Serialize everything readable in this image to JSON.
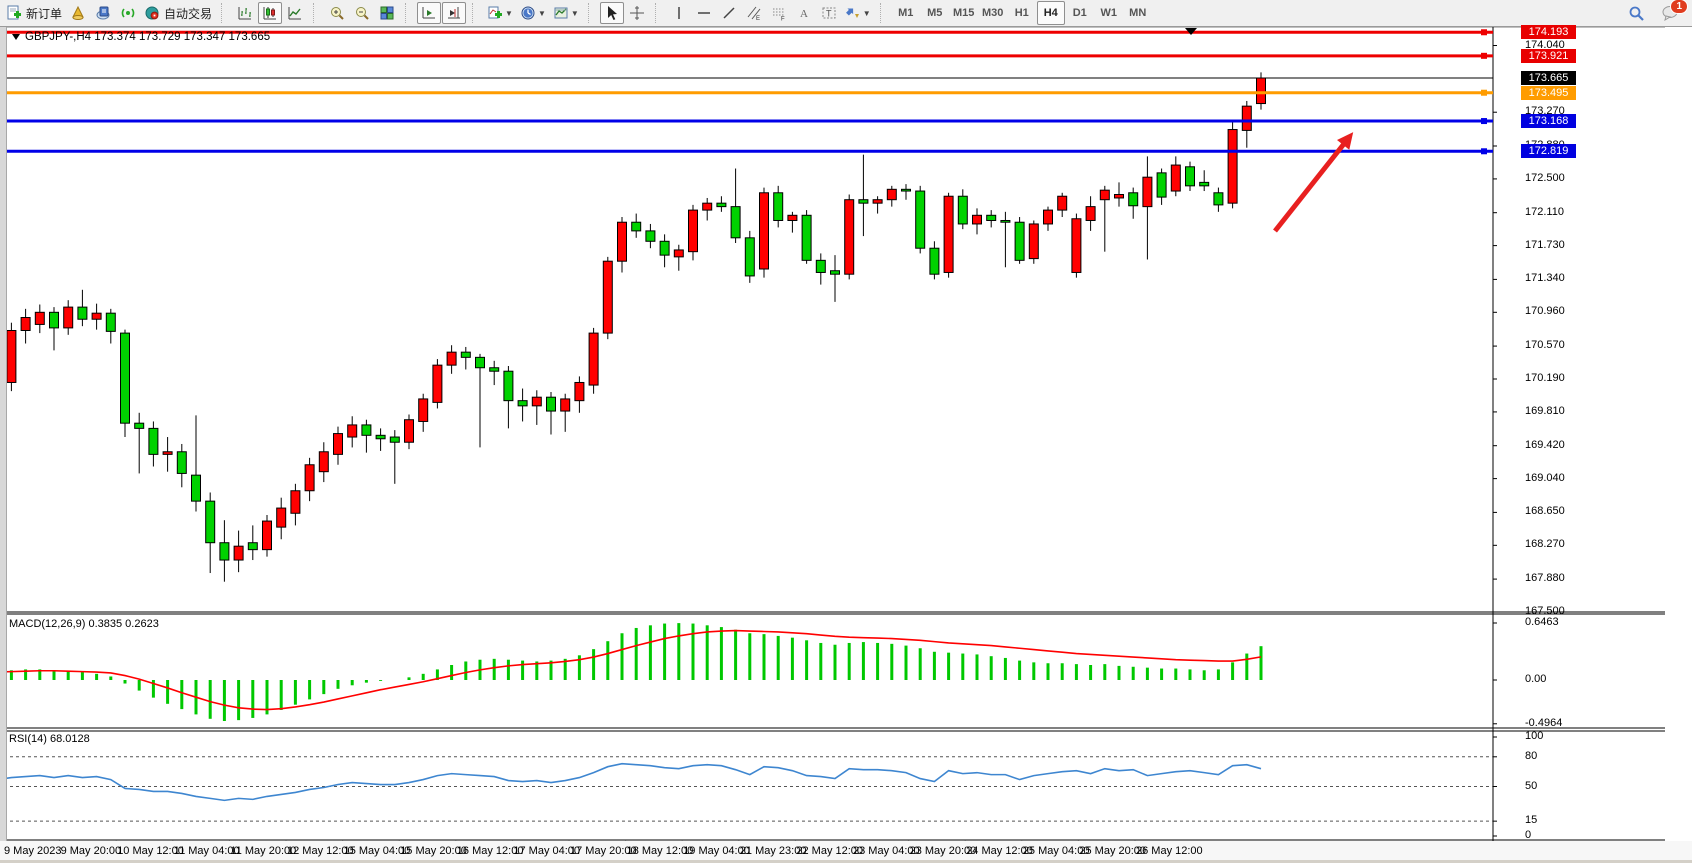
{
  "toolbar": {
    "new_order_label": "新订单",
    "auto_trading_label": "自动交易",
    "timeframes": [
      "M1",
      "M5",
      "M15",
      "M30",
      "H1",
      "H4",
      "D1",
      "W1",
      "MN"
    ],
    "active_timeframe": "H4",
    "notification_badge": "1",
    "icon_names": [
      "new-order-icon",
      "profiles-icon",
      "metaeditor-icon",
      "signals-icon",
      "autotrading-icon",
      "bar-chart-icon",
      "candlestick-chart-icon",
      "line-chart-icon",
      "zoom-in-icon",
      "zoom-out-icon",
      "tile-windows-icon",
      "auto-scroll-icon",
      "chart-shift-icon",
      "add-indicator-icon",
      "periods-icon",
      "templates-icon",
      "cursor-icon",
      "crosshair-icon",
      "vertical-line-icon",
      "horizontal-line-icon",
      "trendline-icon",
      "channel-icon",
      "fibonacci-icon",
      "text-icon",
      "text-label-icon",
      "arrows-icon",
      "search-icon",
      "chat-icon"
    ]
  },
  "chart": {
    "symbol_line": "GBPJPY-,H4  173.374 173.729 173.347 173.665",
    "background": "#ffffff",
    "bull_color": "#ff0000",
    "bear_color": "#00d200"
  },
  "price_axis": {
    "ticks": [
      "174.040",
      "173.270",
      "172.880",
      "172.500",
      "172.110",
      "171.730",
      "171.340",
      "170.960",
      "170.570",
      "170.190",
      "169.810",
      "169.420",
      "169.040",
      "168.650",
      "168.270",
      "167.880",
      "167.500"
    ],
    "badges": [
      {
        "label": "174.193",
        "color": "#e80000"
      },
      {
        "label": "173.921",
        "color": "#e80000"
      },
      {
        "label": "173.665",
        "color": "#000000"
      },
      {
        "label": "173.495",
        "color": "#ff9c00"
      },
      {
        "label": "173.168",
        "color": "#0000e0"
      },
      {
        "label": "172.819",
        "color": "#0000e0"
      }
    ]
  },
  "hlines": [
    {
      "price": 174.193,
      "color": "#ee0000",
      "width": 3
    },
    {
      "price": 173.921,
      "color": "#ee0000",
      "width": 3
    },
    {
      "price": 173.665,
      "color": "#000000",
      "width": 1
    },
    {
      "price": 173.495,
      "color": "#ff9c00",
      "width": 3
    },
    {
      "price": 173.168,
      "color": "#0000e8",
      "width": 3
    },
    {
      "price": 172.819,
      "color": "#0000e8",
      "width": 3
    }
  ],
  "macd_panel": {
    "label": "MACD(12,26,9)",
    "values": "0.3835 0.2623",
    "axis_ticks": [
      "0.6463",
      "0.00",
      "-0.4964"
    ],
    "hist_color": "#00c800",
    "signal_color": "#ff0000"
  },
  "rsi_panel": {
    "label": "RSI(14)",
    "value": "68.0128",
    "axis_ticks": [
      "100",
      "80",
      "50",
      "15",
      "0"
    ],
    "levels": [
      80,
      50,
      15
    ],
    "line_color": "#3e86d0"
  },
  "time_axis": {
    "labels": [
      "9 May 2023",
      "9 May 20:00",
      "10 May 12:00",
      "11 May 04:00",
      "11 May 20:00",
      "12 May 12:00",
      "15 May 04:00",
      "15 May 20:00",
      "16 May 12:00",
      "17 May 04:00",
      "17 May 20:00",
      "18 May 12:00",
      "19 May 04:00",
      "21 May 23:00",
      "22 May 12:00",
      "23 May 04:00",
      "23 May 20:00",
      "24 May 12:00",
      "25 May 04:00",
      "25 May 20:00",
      "26 May 12:00"
    ]
  },
  "annotation_arrow": {
    "color": "#e82020",
    "from": [
      1302,
      231
    ],
    "to": [
      1374,
      140
    ]
  },
  "chart_data": {
    "type": "candlestick",
    "symbol": "GBPJPY-",
    "period": "H4",
    "ohlc_display": {
      "open": "173.374",
      "high": "173.729",
      "low": "173.347",
      "close": "173.665"
    },
    "price_range": [
      167.5,
      174.24
    ],
    "candles": [
      [
        170.42,
        170.46,
        169.95,
        170.08
      ],
      [
        170.08,
        170.62,
        169.92,
        170.32
      ],
      [
        170.15,
        170.84,
        170.05,
        170.75
      ],
      [
        170.75,
        171.0,
        170.6,
        170.9
      ],
      [
        170.82,
        171.05,
        170.72,
        170.96
      ],
      [
        170.96,
        171.02,
        170.52,
        170.78
      ],
      [
        170.78,
        171.1,
        170.7,
        171.02
      ],
      [
        171.02,
        171.22,
        170.8,
        170.88
      ],
      [
        170.88,
        171.06,
        170.76,
        170.95
      ],
      [
        170.95,
        171.0,
        170.6,
        170.74
      ],
      [
        170.72,
        170.76,
        169.52,
        169.68
      ],
      [
        169.68,
        169.8,
        169.1,
        169.62
      ],
      [
        169.62,
        169.7,
        169.18,
        169.32
      ],
      [
        169.32,
        169.52,
        169.12,
        169.35
      ],
      [
        169.35,
        169.44,
        168.94,
        169.1
      ],
      [
        169.08,
        169.77,
        168.66,
        168.78
      ],
      [
        168.78,
        168.88,
        167.95,
        168.3
      ],
      [
        168.3,
        168.56,
        167.85,
        168.1
      ],
      [
        168.1,
        168.44,
        167.96,
        168.26
      ],
      [
        168.3,
        168.5,
        168.1,
        168.22
      ],
      [
        168.22,
        168.62,
        168.14,
        168.55
      ],
      [
        168.48,
        168.82,
        168.34,
        168.7
      ],
      [
        168.64,
        168.98,
        168.5,
        168.9
      ],
      [
        168.9,
        169.28,
        168.78,
        169.2
      ],
      [
        169.12,
        169.46,
        169.0,
        169.35
      ],
      [
        169.32,
        169.64,
        169.2,
        169.56
      ],
      [
        169.52,
        169.76,
        169.4,
        169.66
      ],
      [
        169.66,
        169.72,
        169.34,
        169.54
      ],
      [
        169.54,
        169.62,
        169.36,
        169.5
      ],
      [
        169.52,
        169.6,
        168.98,
        169.46
      ],
      [
        169.46,
        169.78,
        169.38,
        169.72
      ],
      [
        169.7,
        170.02,
        169.58,
        169.96
      ],
      [
        169.92,
        170.42,
        169.85,
        170.35
      ],
      [
        170.35,
        170.58,
        170.25,
        170.5
      ],
      [
        170.5,
        170.56,
        170.3,
        170.44
      ],
      [
        170.44,
        170.48,
        169.4,
        170.32
      ],
      [
        170.32,
        170.4,
        170.12,
        170.28
      ],
      [
        170.28,
        170.34,
        169.62,
        169.94
      ],
      [
        169.94,
        170.08,
        169.7,
        169.88
      ],
      [
        169.88,
        170.06,
        169.66,
        169.98
      ],
      [
        169.98,
        170.04,
        169.55,
        169.82
      ],
      [
        169.82,
        170.02,
        169.58,
        169.96
      ],
      [
        169.94,
        170.22,
        169.8,
        170.15
      ],
      [
        170.12,
        170.78,
        170.02,
        170.72
      ],
      [
        170.72,
        171.6,
        170.65,
        171.55
      ],
      [
        171.55,
        172.06,
        171.42,
        172.0
      ],
      [
        172.0,
        172.1,
        171.82,
        171.9
      ],
      [
        171.9,
        171.98,
        171.7,
        171.78
      ],
      [
        171.78,
        171.86,
        171.48,
        171.62
      ],
      [
        171.6,
        171.74,
        171.44,
        171.68
      ],
      [
        171.66,
        172.2,
        171.56,
        172.14
      ],
      [
        172.14,
        172.28,
        172.02,
        172.22
      ],
      [
        172.22,
        172.3,
        172.12,
        172.18
      ],
      [
        172.18,
        172.62,
        171.76,
        171.82
      ],
      [
        171.82,
        171.9,
        171.3,
        171.38
      ],
      [
        171.46,
        172.4,
        171.36,
        172.34
      ],
      [
        172.34,
        172.42,
        171.94,
        172.02
      ],
      [
        172.02,
        172.12,
        171.88,
        172.08
      ],
      [
        172.08,
        172.14,
        171.52,
        171.56
      ],
      [
        171.56,
        171.64,
        171.28,
        171.42
      ],
      [
        171.44,
        171.62,
        171.08,
        171.4
      ],
      [
        171.4,
        172.32,
        171.34,
        172.26
      ],
      [
        172.26,
        172.78,
        171.84,
        172.22
      ],
      [
        172.22,
        172.3,
        172.1,
        172.26
      ],
      [
        172.26,
        172.42,
        172.18,
        172.38
      ],
      [
        172.38,
        172.44,
        172.26,
        172.36
      ],
      [
        172.36,
        172.42,
        171.64,
        171.7
      ],
      [
        171.7,
        171.78,
        171.34,
        171.4
      ],
      [
        171.42,
        172.34,
        171.36,
        172.3
      ],
      [
        172.3,
        172.38,
        171.92,
        171.98
      ],
      [
        171.98,
        172.16,
        171.86,
        172.08
      ],
      [
        172.08,
        172.14,
        171.94,
        172.02
      ],
      [
        172.02,
        172.12,
        171.48,
        172.0
      ],
      [
        172.0,
        172.06,
        171.52,
        171.56
      ],
      [
        171.58,
        172.02,
        171.52,
        171.98
      ],
      [
        171.98,
        172.18,
        171.9,
        172.14
      ],
      [
        172.14,
        172.34,
        172.06,
        172.3
      ],
      [
        171.42,
        172.1,
        171.36,
        172.04
      ],
      [
        172.02,
        172.3,
        171.9,
        172.18
      ],
      [
        172.26,
        172.42,
        171.66,
        172.37
      ],
      [
        172.28,
        172.46,
        172.18,
        172.32
      ],
      [
        172.34,
        172.4,
        172.04,
        172.19
      ],
      [
        172.18,
        172.76,
        171.57,
        172.52
      ],
      [
        172.57,
        172.62,
        172.2,
        172.29
      ],
      [
        172.36,
        172.76,
        172.3,
        172.66
      ],
      [
        172.64,
        172.7,
        172.36,
        172.42
      ],
      [
        172.46,
        172.6,
        172.36,
        172.42
      ],
      [
        172.34,
        172.4,
        172.12,
        172.2
      ],
      [
        172.22,
        173.17,
        172.16,
        173.07
      ],
      [
        173.06,
        173.4,
        172.86,
        173.34
      ],
      [
        173.37,
        173.73,
        173.3,
        173.665
      ]
    ],
    "macd_hist": [
      0.1,
      0.1,
      0.11,
      0.12,
      0.12,
      0.11,
      0.1,
      0.09,
      0.07,
      0.04,
      -0.04,
      -0.12,
      -0.2,
      -0.27,
      -0.33,
      -0.39,
      -0.44,
      -0.465,
      -0.455,
      -0.43,
      -0.39,
      -0.34,
      -0.28,
      -0.22,
      -0.16,
      -0.1,
      -0.06,
      -0.03,
      -0.01,
      0.0,
      0.03,
      0.07,
      0.12,
      0.17,
      0.21,
      0.23,
      0.24,
      0.23,
      0.22,
      0.21,
      0.22,
      0.24,
      0.28,
      0.35,
      0.44,
      0.53,
      0.59,
      0.62,
      0.64,
      0.645,
      0.64,
      0.62,
      0.6,
      0.57,
      0.53,
      0.52,
      0.5,
      0.48,
      0.45,
      0.42,
      0.4,
      0.42,
      0.43,
      0.42,
      0.41,
      0.39,
      0.36,
      0.32,
      0.31,
      0.3,
      0.29,
      0.27,
      0.25,
      0.22,
      0.2,
      0.19,
      0.19,
      0.18,
      0.17,
      0.18,
      0.16,
      0.15,
      0.14,
      0.13,
      0.13,
      0.12,
      0.11,
      0.12,
      0.2,
      0.3,
      0.3835
    ],
    "macd_signal": [
      0.09,
      0.09,
      0.095,
      0.1,
      0.105,
      0.105,
      0.1,
      0.095,
      0.09,
      0.08,
      0.05,
      0.01,
      -0.04,
      -0.09,
      -0.145,
      -0.195,
      -0.245,
      -0.285,
      -0.315,
      -0.33,
      -0.335,
      -0.325,
      -0.305,
      -0.28,
      -0.25,
      -0.215,
      -0.18,
      -0.145,
      -0.11,
      -0.08,
      -0.05,
      -0.02,
      0.015,
      0.05,
      0.085,
      0.115,
      0.14,
      0.16,
      0.175,
      0.185,
      0.195,
      0.21,
      0.23,
      0.26,
      0.3,
      0.345,
      0.39,
      0.43,
      0.47,
      0.5,
      0.525,
      0.545,
      0.555,
      0.56,
      0.555,
      0.55,
      0.545,
      0.535,
      0.525,
      0.51,
      0.495,
      0.485,
      0.48,
      0.475,
      0.47,
      0.46,
      0.45,
      0.435,
      0.42,
      0.41,
      0.4,
      0.39,
      0.375,
      0.36,
      0.345,
      0.33,
      0.315,
      0.3,
      0.29,
      0.28,
      0.27,
      0.26,
      0.25,
      0.24,
      0.23,
      0.225,
      0.22,
      0.215,
      0.215,
      0.235,
      0.2623
    ],
    "rsi": [
      56,
      57,
      59,
      60,
      61,
      59,
      61,
      59,
      60,
      57,
      48,
      47,
      45,
      45,
      43,
      40,
      38,
      36,
      38,
      37,
      40,
      42,
      44,
      47,
      49,
      52,
      54,
      53,
      52,
      52,
      54,
      57,
      61,
      63,
      62,
      61,
      60,
      56,
      55,
      56,
      54,
      56,
      59,
      64,
      70,
      73,
      72,
      71,
      69,
      68,
      71,
      72,
      71,
      67,
      62,
      70,
      69,
      66,
      61,
      60,
      58,
      68,
      67,
      67,
      66,
      64,
      58,
      55,
      66,
      63,
      64,
      62,
      62,
      57,
      61,
      63,
      65,
      66,
      63,
      68,
      66,
      67,
      61,
      63,
      65,
      66,
      64,
      62,
      71,
      72,
      68.0
    ]
  }
}
